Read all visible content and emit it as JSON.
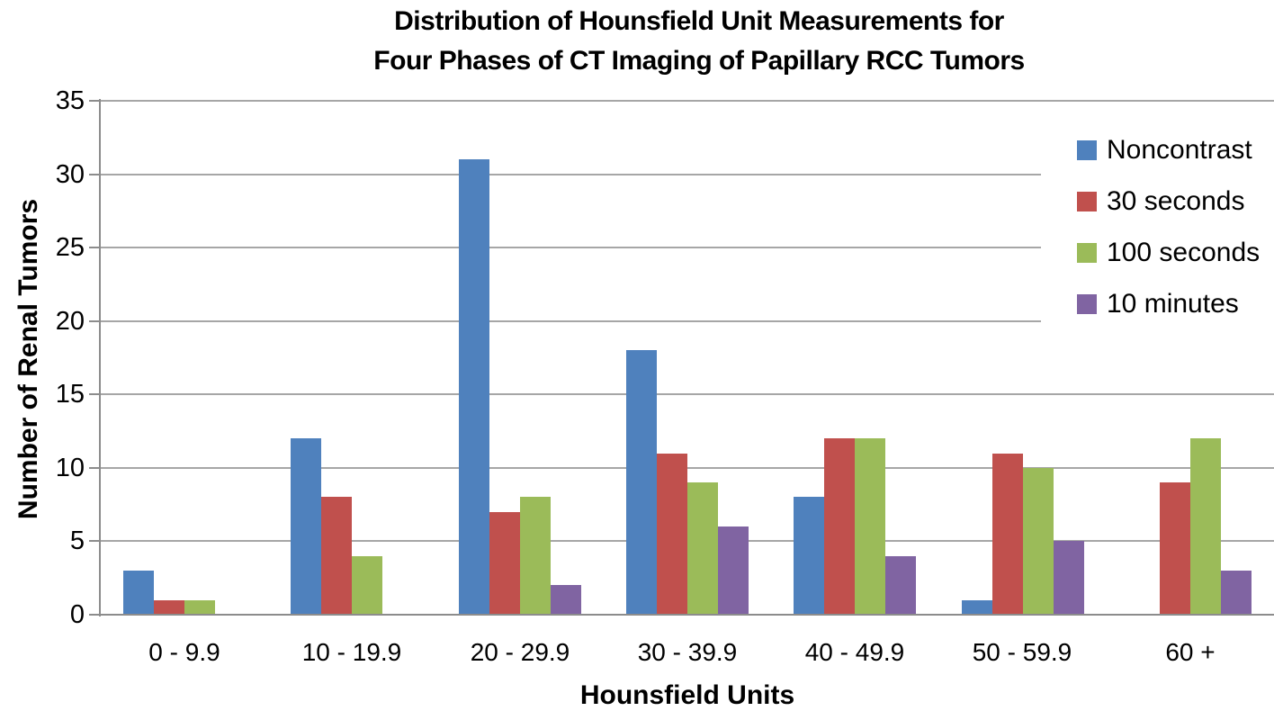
{
  "chart_data": {
    "type": "bar",
    "title": "Distribution of Hounsfield Unit Measurements for Four Phases of CT Imaging of Papillary RCC Tumors",
    "title_lines": [
      "Distribution of Hounsfield Unit Measurements for",
      "Four Phases of CT Imaging of Papillary RCC Tumors"
    ],
    "xlabel": "Hounsfield Units",
    "ylabel": "Number of Renal Tumors",
    "categories": [
      "0 - 9.9",
      "10 - 19.9",
      "20 - 29.9",
      "30 - 39.9",
      "40 - 49.9",
      "50 - 59.9",
      "60 +"
    ],
    "series": [
      {
        "name": "Noncontrast",
        "color": "#4F81BD",
        "values": [
          3,
          12,
          31,
          18,
          8,
          1,
          0
        ]
      },
      {
        "name": "30 seconds",
        "color": "#C0504D",
        "values": [
          1,
          8,
          7,
          11,
          12,
          11,
          9
        ]
      },
      {
        "name": "100 seconds",
        "color": "#9BBB59",
        "values": [
          1,
          4,
          8,
          9,
          12,
          10,
          12
        ]
      },
      {
        "name": "10 minutes",
        "color": "#8064A2",
        "values": [
          0,
          0,
          2,
          6,
          4,
          5,
          3
        ]
      }
    ],
    "ylim": [
      0,
      35
    ],
    "yticks": [
      0,
      5,
      10,
      15,
      20,
      25,
      30,
      35
    ],
    "grid": true,
    "legend_position": "top-right",
    "gridline_color": "#A6A6A6",
    "axis_color": "#8C8C8C",
    "background": "#FFFFFF"
  }
}
